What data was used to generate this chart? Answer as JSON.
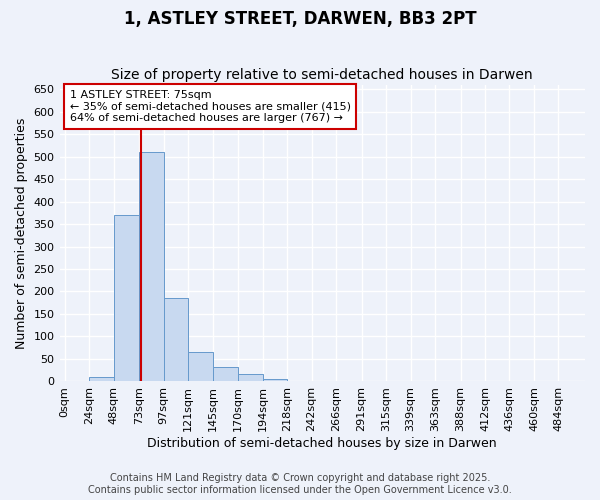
{
  "title": "1, ASTLEY STREET, DARWEN, BB3 2PT",
  "subtitle": "Size of property relative to semi-detached houses in Darwen",
  "xlabel": "Distribution of semi-detached houses by size in Darwen",
  "ylabel": "Number of semi-detached properties",
  "bins": [
    "0sqm",
    "24sqm",
    "48sqm",
    "73sqm",
    "97sqm",
    "121sqm",
    "145sqm",
    "170sqm",
    "194sqm",
    "218sqm",
    "242sqm",
    "266sqm",
    "291sqm",
    "315sqm",
    "339sqm",
    "363sqm",
    "388sqm",
    "412sqm",
    "436sqm",
    "460sqm",
    "484sqm"
  ],
  "bin_left_edges": [
    0,
    24,
    48,
    73,
    97,
    121,
    145,
    170,
    194,
    218,
    242,
    266,
    291,
    315,
    339,
    363,
    388,
    412,
    436,
    460,
    484
  ],
  "bar_heights": [
    0,
    10,
    370,
    510,
    185,
    65,
    32,
    17,
    5,
    0,
    2,
    0,
    0,
    0,
    0,
    0,
    0,
    0,
    0,
    0,
    0
  ],
  "bar_color": "#c8d9f0",
  "bar_edge_color": "#6699cc",
  "property_size": 75,
  "vline_color": "#cc0000",
  "annotation_text": "1 ASTLEY STREET: 75sqm\n← 35% of semi-detached houses are smaller (415)\n64% of semi-detached houses are larger (767) →",
  "annotation_box_color": "#ffffff",
  "annotation_box_edge_color": "#cc0000",
  "ylim": [
    0,
    660
  ],
  "yticks": [
    0,
    50,
    100,
    150,
    200,
    250,
    300,
    350,
    400,
    450,
    500,
    550,
    600,
    650
  ],
  "footer_line1": "Contains HM Land Registry data © Crown copyright and database right 2025.",
  "footer_line2": "Contains public sector information licensed under the Open Government Licence v3.0.",
  "background_color": "#eef2fa",
  "plot_background": "#eef2fa",
  "title_fontsize": 12,
  "subtitle_fontsize": 10,
  "axis_label_fontsize": 9,
  "tick_fontsize": 8,
  "annotation_fontsize": 8,
  "footer_fontsize": 7
}
